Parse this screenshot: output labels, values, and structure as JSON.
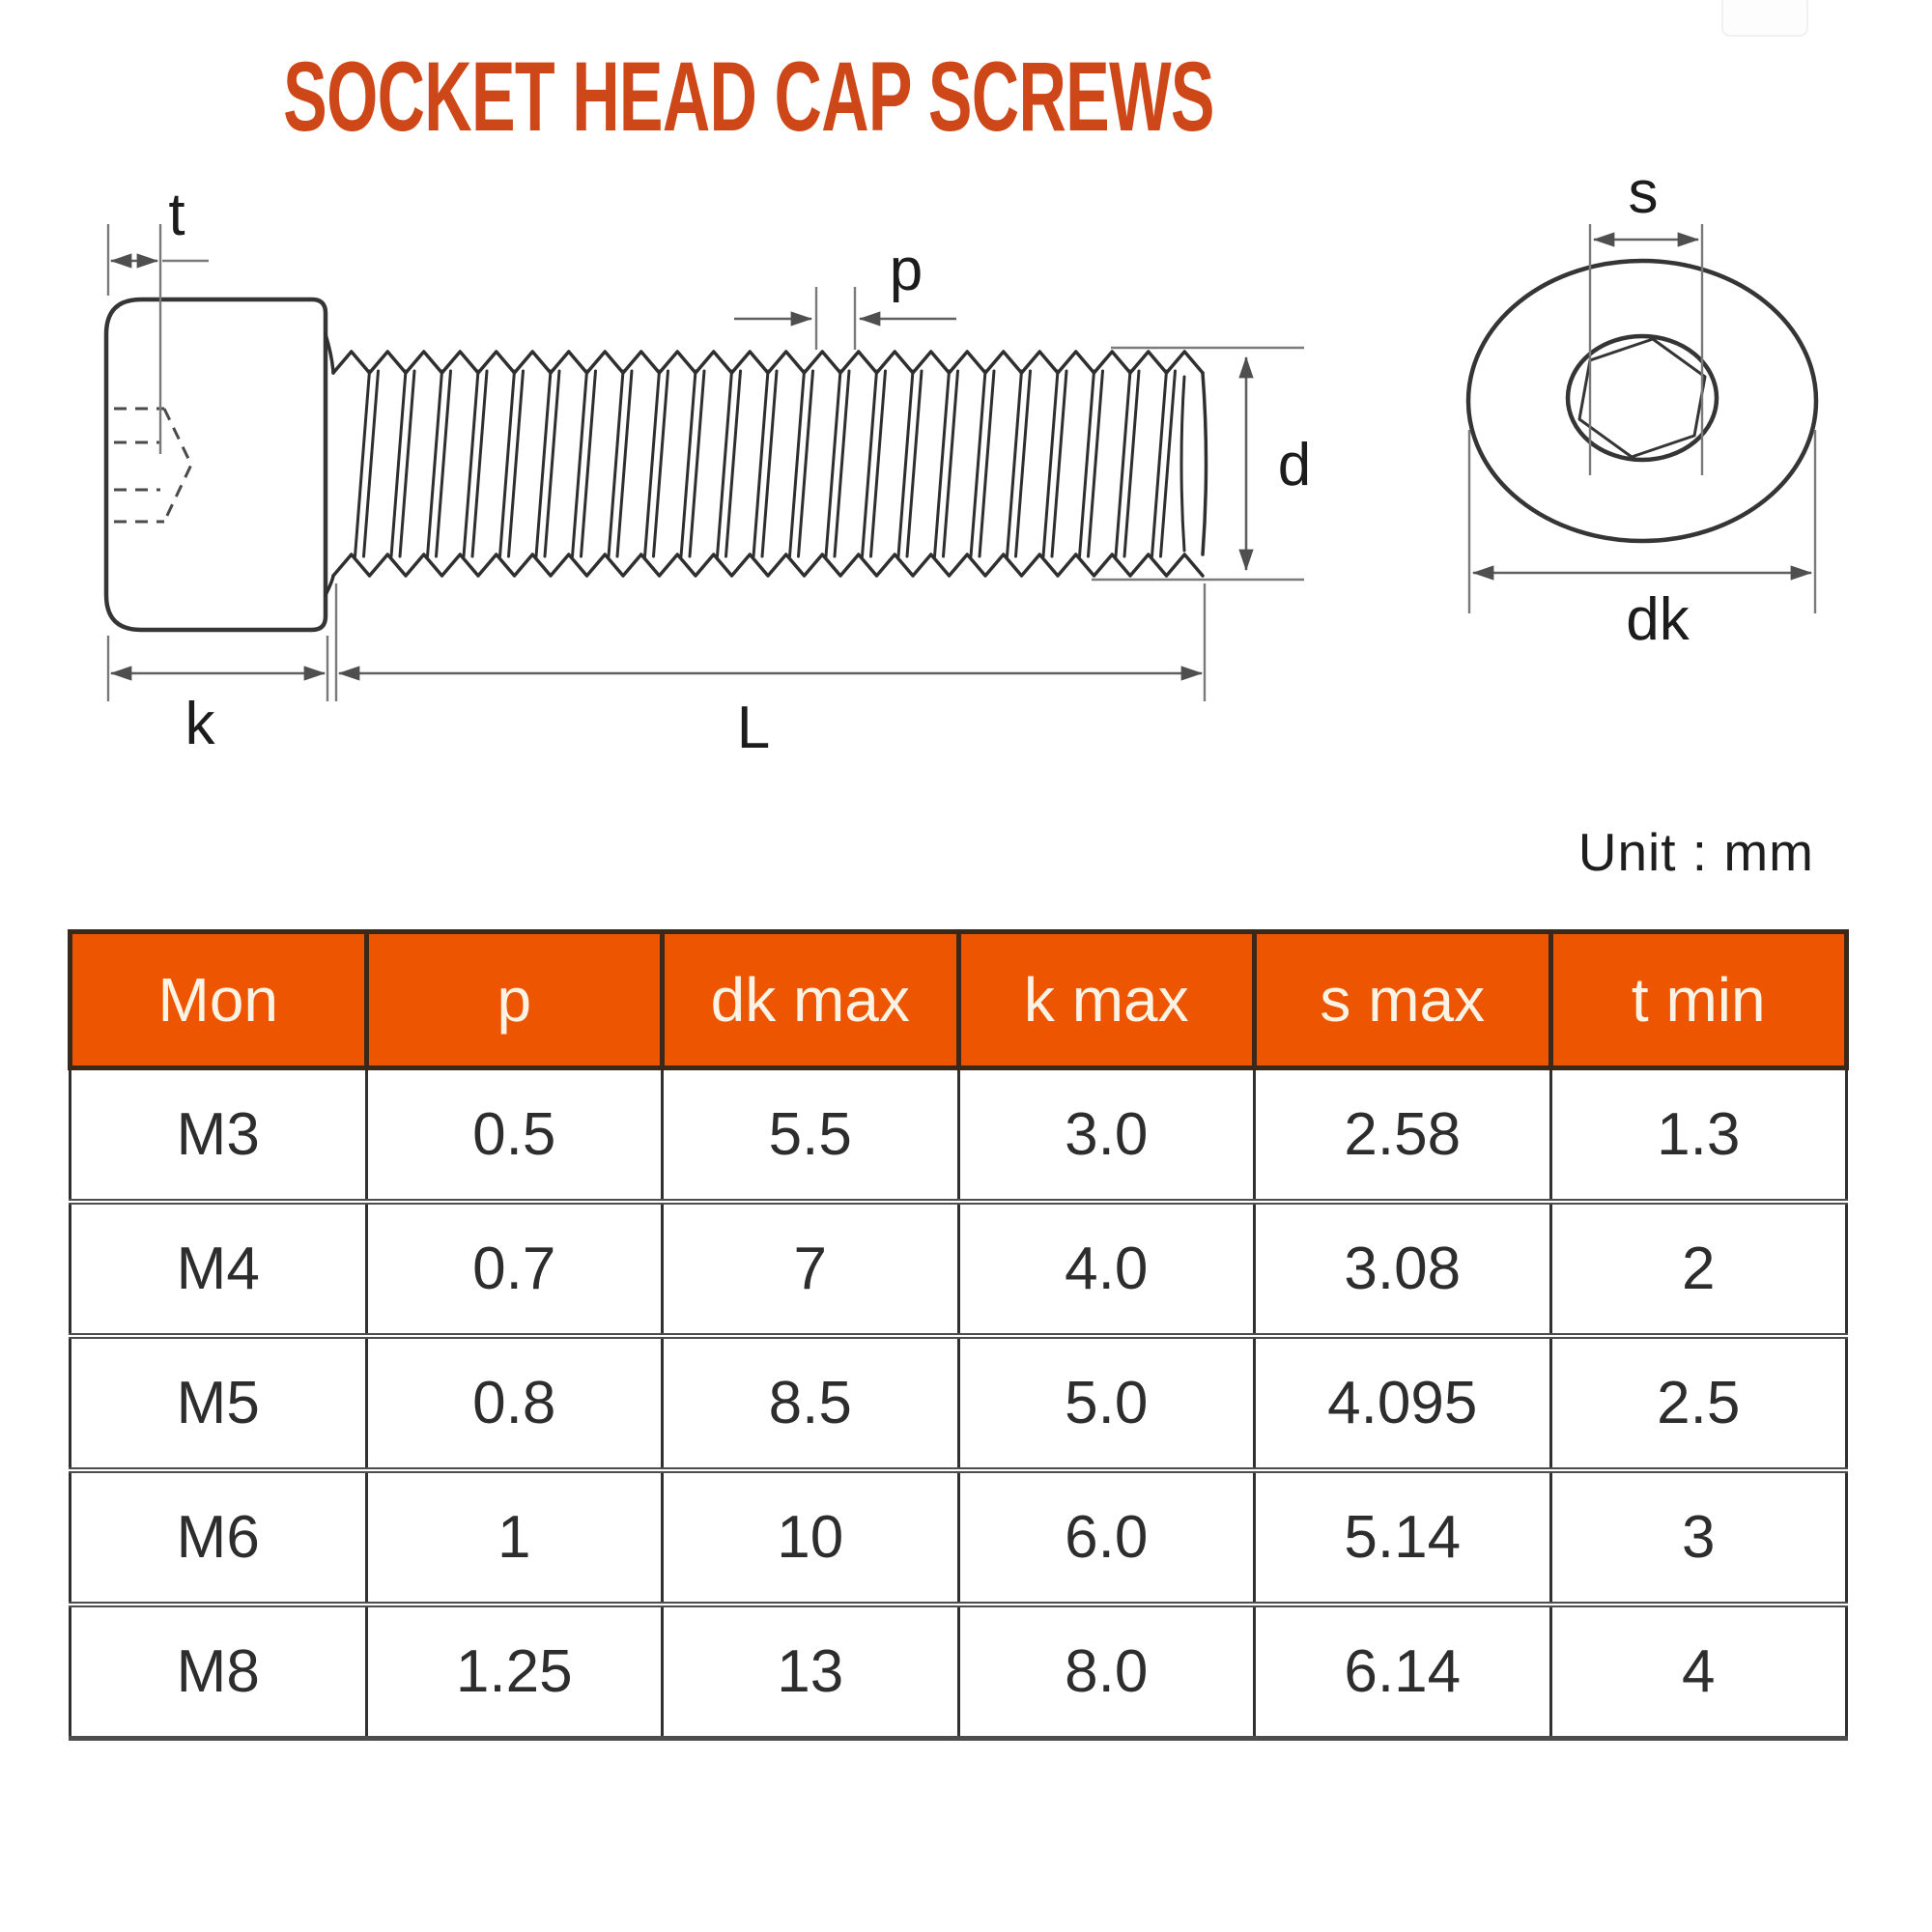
{
  "title": "SOCKET HEAD CAP SCREWS",
  "unit_label": "Unit : mm",
  "colors": {
    "accent_orange": "#ee5500",
    "title_orange": "#ce4718",
    "line_gray": "#353535"
  },
  "diagram": {
    "labels": {
      "t": "t",
      "p": "p",
      "d": "d",
      "k": "k",
      "L": "L",
      "s": "s",
      "dk": "dk"
    }
  },
  "table": {
    "columns": [
      "Mon",
      "p",
      "dk max",
      "k max",
      "s max",
      "t min"
    ],
    "rows": [
      {
        "cells": [
          "M3",
          "0.5",
          "5.5",
          "3.0",
          "2.58",
          "1.3"
        ]
      },
      {
        "cells": [
          "M4",
          "0.7",
          "7",
          "4.0",
          "3.08",
          "2"
        ]
      },
      {
        "cells": [
          "M5",
          "0.8",
          "8.5",
          "5.0",
          "4.095",
          "2.5"
        ]
      },
      {
        "cells": [
          "M6",
          "1",
          "10",
          "6.0",
          "5.14",
          "3"
        ]
      },
      {
        "cells": [
          "M8",
          "1.25",
          "13",
          "8.0",
          "6.14",
          "4"
        ]
      }
    ]
  }
}
